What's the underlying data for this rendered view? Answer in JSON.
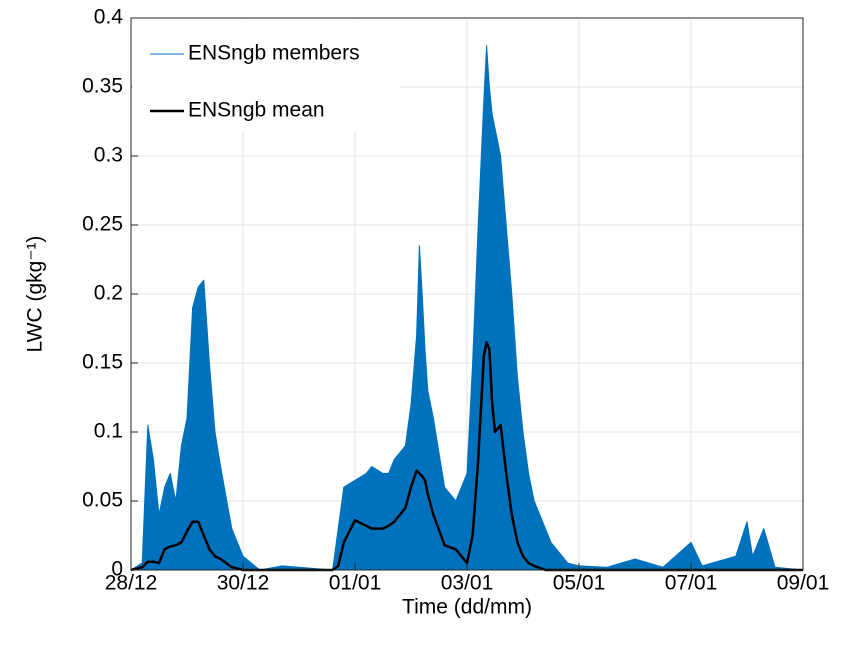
{
  "chart_data": {
    "type": "line",
    "xlabel": "Time (dd/mm)",
    "ylabel": "LWC (gkg⁻¹)",
    "x": [
      0,
      0.2,
      0.3,
      0.4,
      0.5,
      0.6,
      0.7,
      0.8,
      0.9,
      1.0,
      1.1,
      1.2,
      1.3,
      1.4,
      1.5,
      1.6,
      1.8,
      2.0,
      2.3,
      2.7,
      3.6,
      3.7,
      3.8,
      4.0,
      4.2,
      4.3,
      4.5,
      4.6,
      4.7,
      4.9,
      5.0,
      5.1,
      5.15,
      5.2,
      5.25,
      5.3,
      5.4,
      5.6,
      5.8,
      6.0,
      6.1,
      6.2,
      6.3,
      6.35,
      6.4,
      6.45,
      6.5,
      6.6,
      6.7,
      6.8,
      6.9,
      7.0,
      7.1,
      7.2,
      7.4,
      7.5,
      7.8,
      8.0,
      8.5,
      9.0,
      9.5,
      10.0,
      10.2,
      10.8,
      11.0,
      11.1,
      11.3,
      11.5,
      12
    ],
    "series": [
      {
        "name": "ENSngb members",
        "color": "#0072bd",
        "fill": true,
        "width": 1,
        "values": [
          0,
          0.005,
          0.105,
          0.08,
          0.04,
          0.06,
          0.07,
          0.05,
          0.09,
          0.11,
          0.19,
          0.205,
          0.21,
          0.15,
          0.1,
          0.075,
          0.03,
          0.01,
          0,
          0.003,
          0,
          0.03,
          0.06,
          0.065,
          0.07,
          0.075,
          0.07,
          0.07,
          0.08,
          0.09,
          0.12,
          0.17,
          0.235,
          0.2,
          0.16,
          0.13,
          0.11,
          0.06,
          0.05,
          0.07,
          0.15,
          0.25,
          0.34,
          0.38,
          0.35,
          0.33,
          0.32,
          0.3,
          0.25,
          0.2,
          0.14,
          0.1,
          0.07,
          0.05,
          0.03,
          0.02,
          0.005,
          0.003,
          0.002,
          0.008,
          0.002,
          0.02,
          0.003,
          0.01,
          0.035,
          0.01,
          0.03,
          0.002,
          0
        ]
      },
      {
        "name": "ENSngb mean",
        "color": "#000000",
        "fill": false,
        "width": 2.5,
        "values": [
          0,
          0.002,
          0.006,
          0.006,
          0.005,
          0.015,
          0.017,
          0.018,
          0.02,
          0.028,
          0.035,
          0.035,
          0.025,
          0.015,
          0.01,
          0.008,
          0.002,
          0,
          0,
          0,
          0,
          0.003,
          0.02,
          0.036,
          0.032,
          0.03,
          0.03,
          0.032,
          0.035,
          0.045,
          0.06,
          0.072,
          0.07,
          0.068,
          0.065,
          0.055,
          0.04,
          0.018,
          0.015,
          0.005,
          0.025,
          0.08,
          0.155,
          0.165,
          0.16,
          0.12,
          0.1,
          0.105,
          0.07,
          0.04,
          0.02,
          0.01,
          0.005,
          0.003,
          0,
          0,
          0,
          0,
          0,
          0,
          0,
          0,
          0,
          0,
          0,
          0,
          0,
          0,
          0
        ]
      }
    ],
    "xlim": [
      0,
      12
    ],
    "xticks": [
      {
        "value": 0,
        "label": "28/12"
      },
      {
        "value": 2,
        "label": "30/12"
      },
      {
        "value": 4,
        "label": "01/01"
      },
      {
        "value": 6,
        "label": "03/01"
      },
      {
        "value": 8,
        "label": "05/01"
      },
      {
        "value": 10,
        "label": "07/01"
      },
      {
        "value": 12,
        "label": "09/01"
      }
    ],
    "ylim": [
      0,
      0.4
    ],
    "yticks": [
      0,
      0.05,
      0.1,
      0.15,
      0.2,
      0.25,
      0.3,
      0.35,
      0.4
    ],
    "grid": true,
    "legend": "upper-left"
  }
}
